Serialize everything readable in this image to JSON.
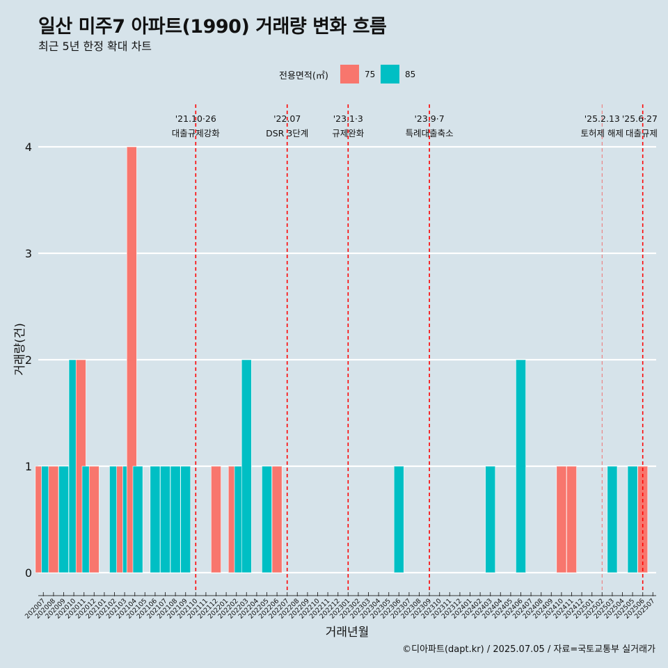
{
  "title": "일산 미주7 아파트(1990) 거래량 변화 흐름",
  "subtitle": "최근 5년 한정 확대 차트",
  "legend": {
    "title": "전용면적(㎡)",
    "items": [
      {
        "label": "75",
        "color": "#F8766D"
      },
      {
        "label": "85",
        "color": "#00BFC4"
      }
    ]
  },
  "caption": "©디아파트(dapt.kr) / 2025.07.05 / 자료=국토교통부 실거래가",
  "chart_data": {
    "type": "bar",
    "title": "일산 미주7 아파트(1990) 거래량 변화 흐름",
    "subtitle": "최근 5년 한정 확대 차트",
    "xlabel": "거래년월",
    "ylabel": "거래량(건)",
    "ylim": [
      0,
      4
    ],
    "yticks": [
      0,
      1,
      2,
      3,
      4
    ],
    "grid": true,
    "legend_position": "top",
    "categories": [
      "202007",
      "202008",
      "202009",
      "202010",
      "202011",
      "202012",
      "202101",
      "202102",
      "202103",
      "202104",
      "202105",
      "202106",
      "202107",
      "202108",
      "202109",
      "202110",
      "202111",
      "202112",
      "202201",
      "202202",
      "202203",
      "202204",
      "202205",
      "202206",
      "202207",
      "202208",
      "202209",
      "202210",
      "202211",
      "202212",
      "202301",
      "202302",
      "202303",
      "202304",
      "202305",
      "202306",
      "202307",
      "202308",
      "202309",
      "202310",
      "202311",
      "202312",
      "202401",
      "202402",
      "202403",
      "202404",
      "202405",
      "202406",
      "202407",
      "202408",
      "202409",
      "202410",
      "202411",
      "202412",
      "202501",
      "202502",
      "202503",
      "202504",
      "202505",
      "202506",
      "202507"
    ],
    "bars": [
      {
        "month": "202007",
        "offset": -0.3,
        "series": "75",
        "value": 1
      },
      {
        "month": "202007",
        "offset": 0.3,
        "series": "85",
        "value": 1
      },
      {
        "month": "202008",
        "offset": 0.0,
        "series": "75",
        "value": 1
      },
      {
        "month": "202009",
        "offset": 0.0,
        "series": "85",
        "value": 1
      },
      {
        "month": "202010",
        "offset": 0.0,
        "series": "85",
        "value": 2
      },
      {
        "month": "202011",
        "offset": -0.3,
        "series": "75",
        "value": 2
      },
      {
        "month": "202011",
        "offset": 0.3,
        "series": "85",
        "value": 1
      },
      {
        "month": "202012",
        "offset": 0.0,
        "series": "75",
        "value": 1
      },
      {
        "month": "202102",
        "offset": 0.0,
        "series": "85",
        "value": 1
      },
      {
        "month": "202103",
        "offset": -0.3,
        "series": "75",
        "value": 1
      },
      {
        "month": "202103",
        "offset": 0.3,
        "series": "85",
        "value": 1
      },
      {
        "month": "202104",
        "offset": -0.3,
        "series": "75",
        "value": 4
      },
      {
        "month": "202104",
        "offset": 0.3,
        "series": "85",
        "value": 1
      },
      {
        "month": "202106",
        "offset": 0.0,
        "series": "85",
        "value": 1
      },
      {
        "month": "202107",
        "offset": 0.0,
        "series": "85",
        "value": 1
      },
      {
        "month": "202108",
        "offset": 0.0,
        "series": "85",
        "value": 1
      },
      {
        "month": "202109",
        "offset": 0.0,
        "series": "85",
        "value": 1
      },
      {
        "month": "202112",
        "offset": 0.0,
        "series": "75",
        "value": 1
      },
      {
        "month": "202202",
        "offset": -0.3,
        "series": "75",
        "value": 1
      },
      {
        "month": "202202",
        "offset": 0.3,
        "series": "85",
        "value": 1
      },
      {
        "month": "202203",
        "offset": 0.0,
        "series": "85",
        "value": 2
      },
      {
        "month": "202205",
        "offset": 0.0,
        "series": "85",
        "value": 1
      },
      {
        "month": "202206",
        "offset": 0.0,
        "series": "75",
        "value": 1
      },
      {
        "month": "202306",
        "offset": 0.0,
        "series": "85",
        "value": 1
      },
      {
        "month": "202403",
        "offset": 0.0,
        "series": "85",
        "value": 1
      },
      {
        "month": "202406",
        "offset": 0.0,
        "series": "85",
        "value": 2
      },
      {
        "month": "202410",
        "offset": 0.0,
        "series": "75",
        "value": 1
      },
      {
        "month": "202411",
        "offset": 0.0,
        "series": "75",
        "value": 1
      },
      {
        "month": "202503",
        "offset": 0.0,
        "series": "85",
        "value": 1
      },
      {
        "month": "202505",
        "offset": 0.0,
        "series": "85",
        "value": 1
      },
      {
        "month": "202506",
        "offset": 0.0,
        "series": "75",
        "value": 1
      }
    ],
    "events": [
      {
        "month": "202110",
        "date": "'21.10·26",
        "label": "대출규제강화",
        "strong": true
      },
      {
        "month": "202207",
        "date": "'22.07",
        "label": "DSR 3단계",
        "strong": true
      },
      {
        "month": "202301",
        "date": "'23.1·3",
        "label": "규제완화",
        "strong": true
      },
      {
        "month": "202309",
        "date": "'23.9·7",
        "label": "특례대출축소",
        "strong": true
      },
      {
        "month": "202502",
        "date": "'25.2.13",
        "label": "토허제 해제",
        "strong": false
      },
      {
        "month": "202506",
        "date": "'25.6·27",
        "label": "대출규제",
        "strong": true
      }
    ]
  }
}
